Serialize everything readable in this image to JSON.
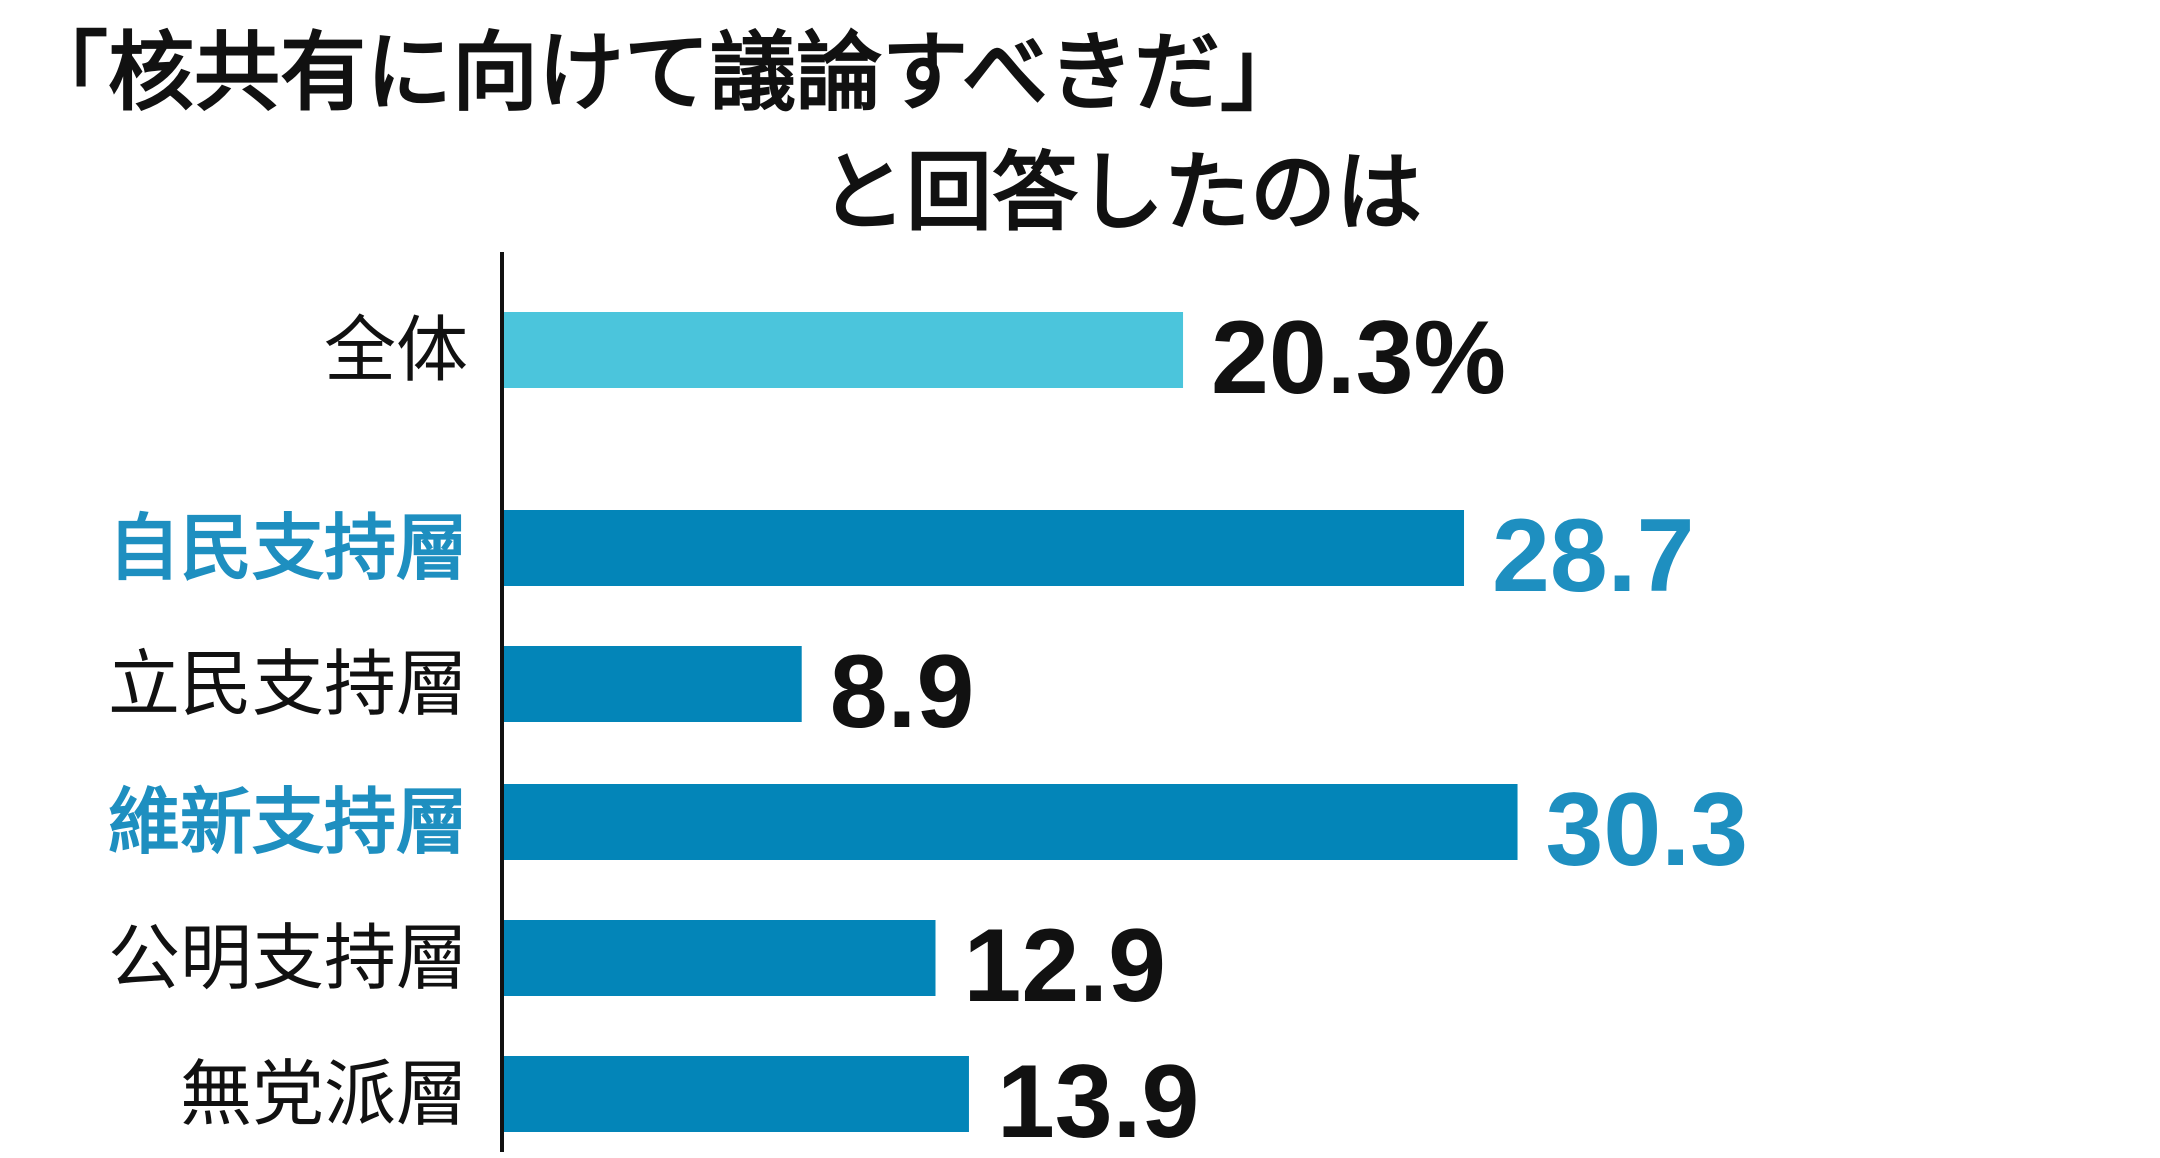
{
  "title": {
    "line1": "「核共有に向けて議論すべきだ」",
    "line2": "と回答したのは"
  },
  "colors": {
    "overall_bar": "#4bc5dc",
    "bar": "#0385b8",
    "highlight_text": "#1e8fc0",
    "default_text": "#111111",
    "axis": "#111111"
  },
  "chart_data": {
    "type": "bar",
    "orientation": "horizontal",
    "categories": [
      "全体",
      "自民支持層",
      "立民支持層",
      "維新支持層",
      "公明支持層",
      "無党派層"
    ],
    "values": [
      20.3,
      28.7,
      8.9,
      30.3,
      12.9,
      13.9
    ],
    "value_labels": [
      "20.3%",
      "28.7",
      "8.9",
      "30.3",
      "12.9",
      "13.9"
    ],
    "highlighted": [
      false,
      true,
      false,
      true,
      false,
      false
    ],
    "unit": "%",
    "title": "「核共有に向けて議論すべきだ」と回答したのは",
    "xlabel": "",
    "ylabel": "",
    "grid": false,
    "legend": "none"
  }
}
